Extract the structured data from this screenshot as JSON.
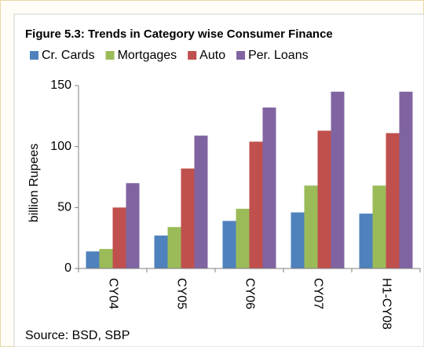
{
  "chart_data": {
    "type": "bar",
    "title": "Figure 5.3: Trends in Category wise Consumer Finance",
    "y_label": "billion Rupees",
    "source": "Source: BSD, SBP",
    "categories": [
      "CY04",
      "CY05",
      "CY06",
      "CY07",
      "H1-CY08"
    ],
    "series": [
      {
        "name": "Cr. Cards",
        "color": "#4f81bd",
        "values": [
          14,
          27,
          39,
          46,
          45
        ]
      },
      {
        "name": "Mortgages",
        "color": "#9bbb59",
        "values": [
          16,
          34,
          49,
          68,
          68
        ]
      },
      {
        "name": "Auto",
        "color": "#c0504d",
        "values": [
          50,
          82,
          104,
          113,
          111
        ]
      },
      {
        "name": "Per. Loans",
        "color": "#8064a2",
        "values": [
          70,
          109,
          132,
          145,
          145
        ]
      }
    ],
    "ylim": [
      0,
      150
    ],
    "yticks": [
      0,
      50,
      100,
      150
    ],
    "grid": false
  }
}
